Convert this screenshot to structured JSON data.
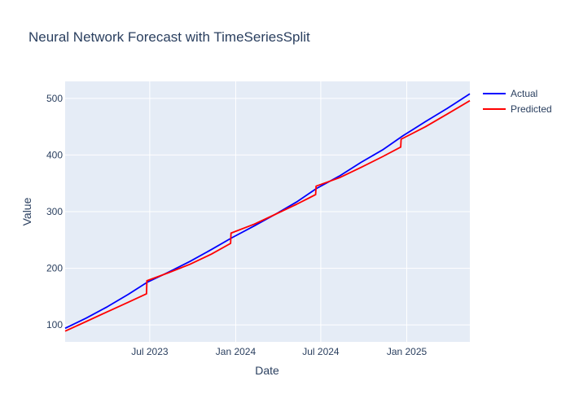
{
  "chart_data": {
    "type": "line",
    "title": "Neural Network Forecast with TimeSeriesSplit",
    "xlabel": "Date",
    "ylabel": "Value",
    "xlim": [
      "2023-01-01",
      "2025-05-16"
    ],
    "ylim": [
      70,
      530
    ],
    "x_ticks": [
      {
        "date": "2023-07-01",
        "label": "Jul 2023"
      },
      {
        "date": "2024-01-01",
        "label": "Jan 2024"
      },
      {
        "date": "2024-07-01",
        "label": "Jul 2024"
      },
      {
        "date": "2025-01-01",
        "label": "Jan 2025"
      }
    ],
    "y_ticks": [
      100,
      200,
      300,
      400,
      500
    ],
    "grid": true,
    "legend_position": "top-right",
    "series": [
      {
        "name": "Actual",
        "color": "#0000ff",
        "points": [
          [
            "2023-01-01",
            94
          ],
          [
            "2023-02-15",
            112
          ],
          [
            "2023-04-01",
            132
          ],
          [
            "2023-05-16",
            154
          ],
          [
            "2023-06-25",
            175
          ],
          [
            "2023-08-10",
            193
          ],
          [
            "2023-09-25",
            212
          ],
          [
            "2023-11-10",
            233
          ],
          [
            "2023-12-24",
            254
          ],
          [
            "2024-02-10",
            275
          ],
          [
            "2024-03-25",
            295
          ],
          [
            "2024-05-10",
            317
          ],
          [
            "2024-06-22",
            341
          ],
          [
            "2024-08-10",
            363
          ],
          [
            "2024-09-25",
            387
          ],
          [
            "2024-11-10",
            409
          ],
          [
            "2024-12-24",
            434
          ],
          [
            "2025-02-10",
            459
          ],
          [
            "2025-03-28",
            482
          ],
          [
            "2025-05-16",
            508
          ]
        ]
      },
      {
        "name": "Predicted",
        "color": "#ff0000",
        "points": [
          [
            "2023-01-01",
            89
          ],
          [
            "2023-02-15",
            106
          ],
          [
            "2023-04-01",
            123
          ],
          [
            "2023-05-16",
            140
          ],
          [
            "2023-06-24",
            155
          ],
          [
            "2023-06-25",
            178
          ],
          [
            "2023-08-10",
            192
          ],
          [
            "2023-09-25",
            207
          ],
          [
            "2023-11-10",
            225
          ],
          [
            "2023-12-21",
            244
          ],
          [
            "2023-12-22",
            262
          ],
          [
            "2024-02-10",
            278
          ],
          [
            "2024-03-25",
            295
          ],
          [
            "2024-05-10",
            313
          ],
          [
            "2024-06-20",
            330
          ],
          [
            "2024-06-21",
            345
          ],
          [
            "2024-08-10",
            360
          ],
          [
            "2024-09-25",
            378
          ],
          [
            "2024-11-10",
            397
          ],
          [
            "2024-12-19",
            414
          ],
          [
            "2024-12-20",
            428
          ],
          [
            "2025-02-10",
            450
          ],
          [
            "2025-03-28",
            472
          ],
          [
            "2025-05-16",
            496
          ]
        ]
      }
    ]
  }
}
